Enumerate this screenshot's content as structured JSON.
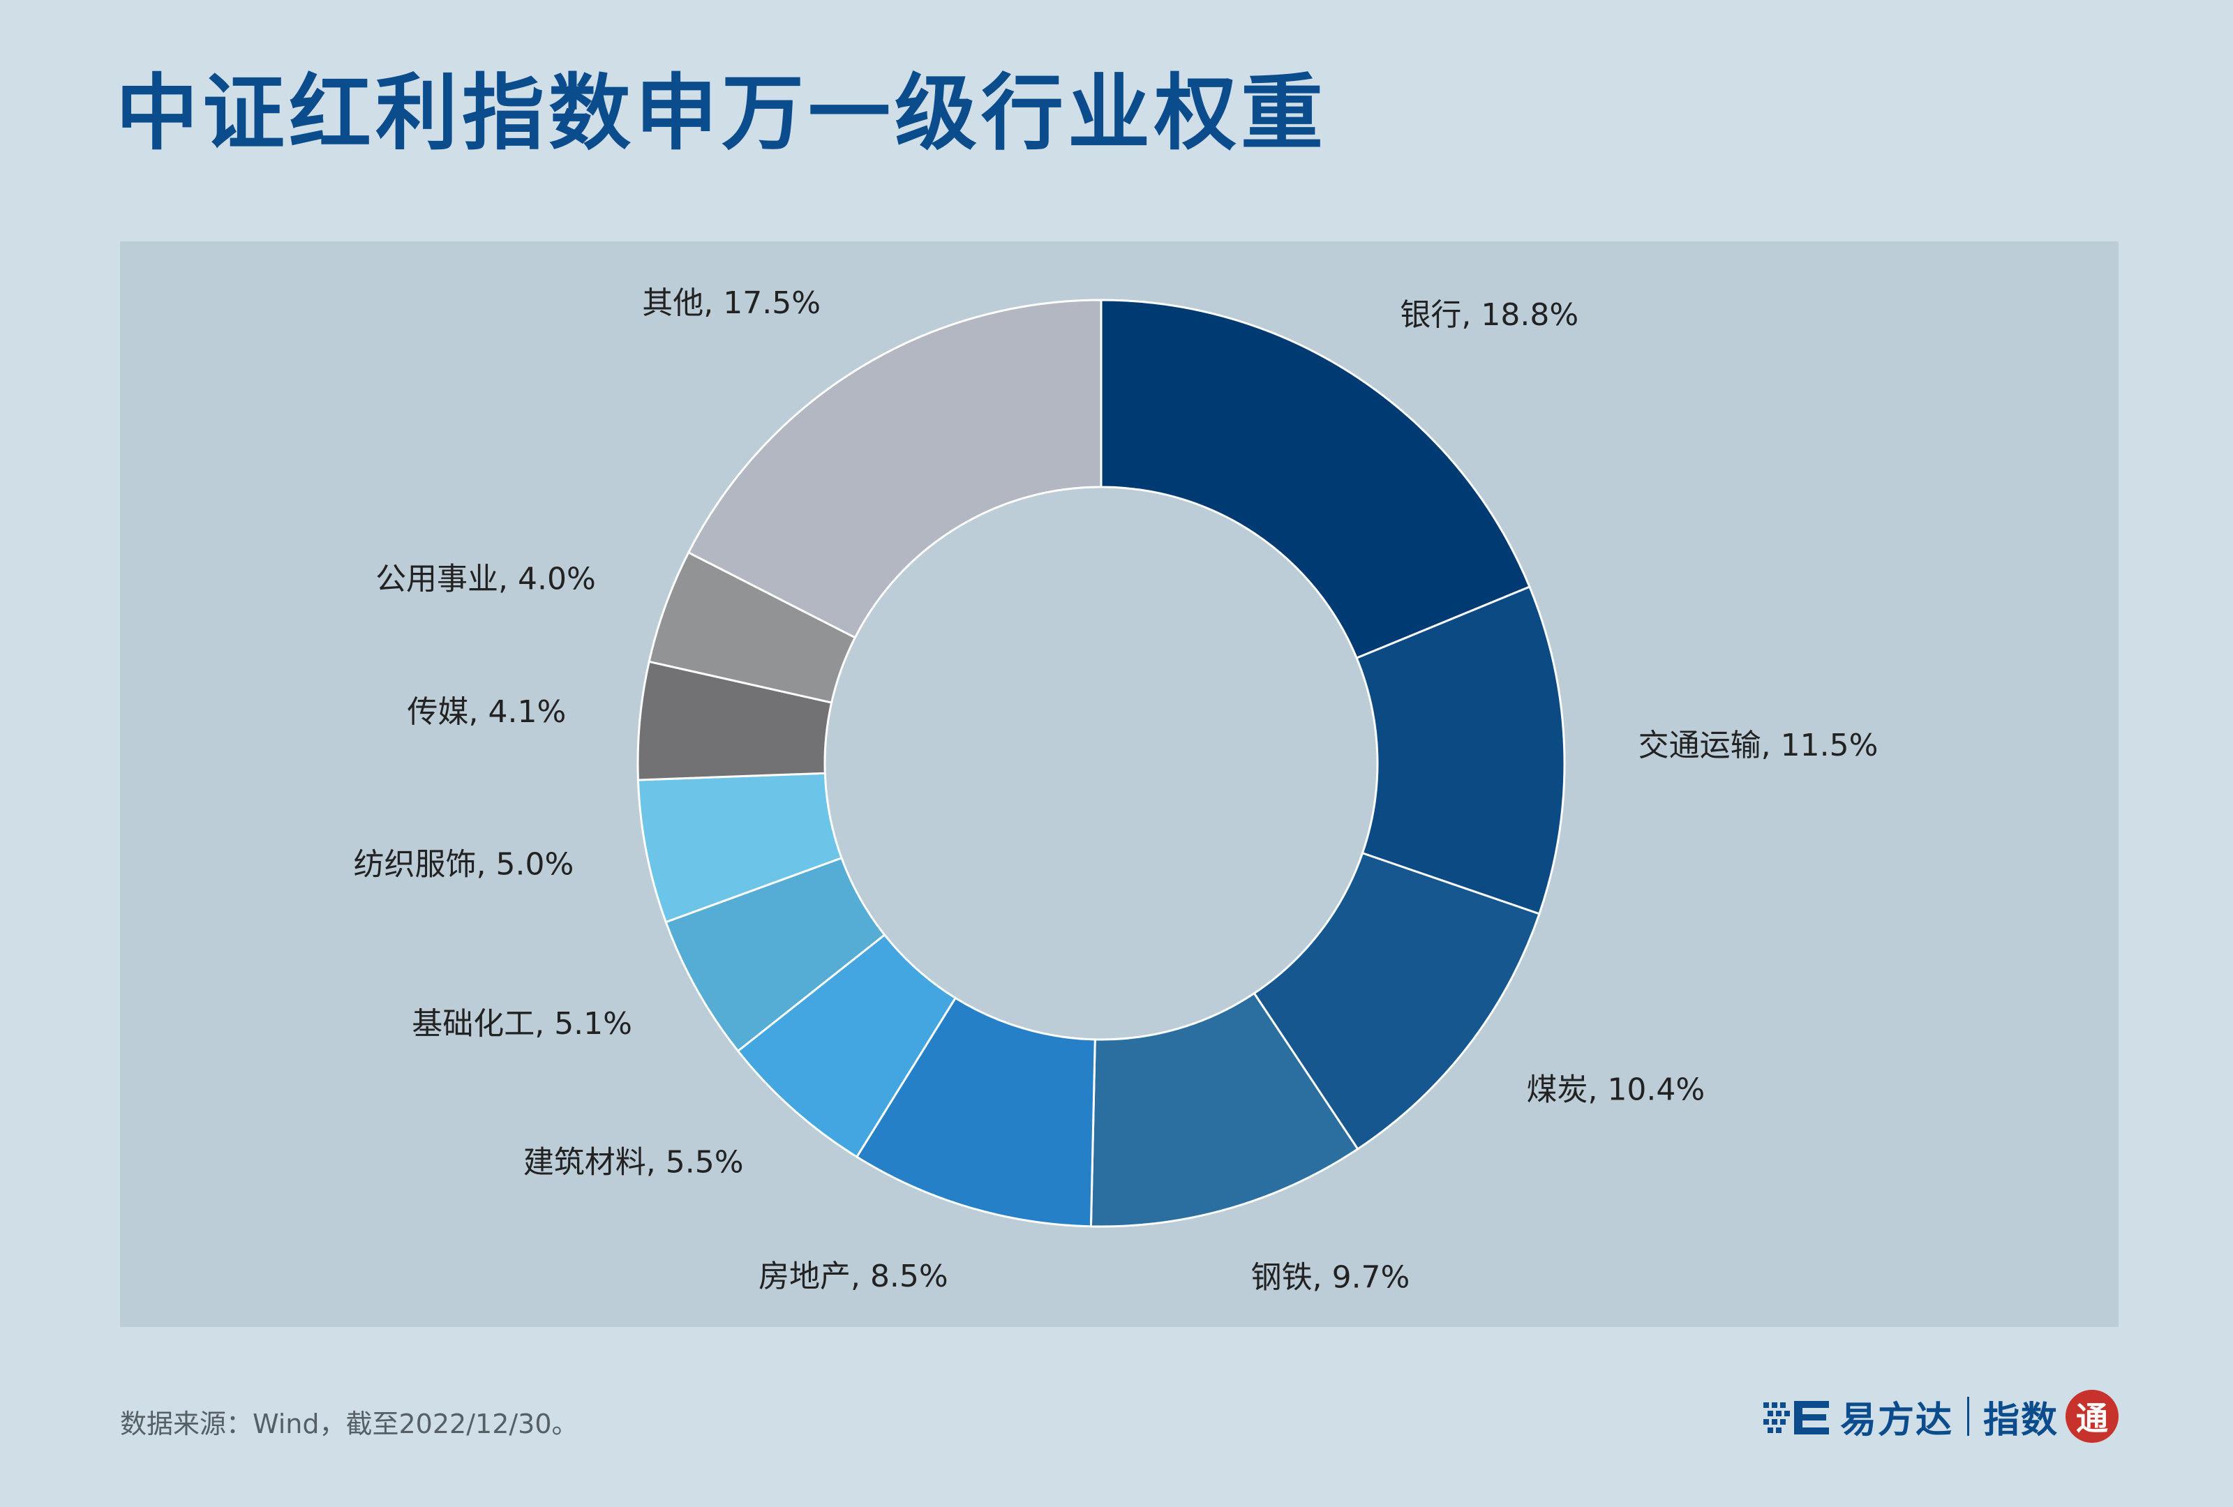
{
  "title": "中证红利指数申万一级行业权重",
  "source_note": "数据来源：Wind，截至2022/12/30。",
  "brand": {
    "name": "易方达",
    "sub": "指数",
    "seal": "通"
  },
  "colors": {
    "title": "#0a4c8c",
    "background": "#d0dee7",
    "panel": "#bccdd7"
  },
  "chart_data": {
    "type": "pie",
    "variant": "donut",
    "title": "",
    "slices": [
      {
        "label": "银行, 18.8%",
        "name": "银行",
        "value": 18.8,
        "color": "#003a73"
      },
      {
        "label": "交通运输, 11.5%",
        "name": "交通运输",
        "value": 11.5,
        "color": "#0c4a84"
      },
      {
        "label": "煤炭, 10.4%",
        "name": "煤炭",
        "value": 10.4,
        "color": "#15578e"
      },
      {
        "label": "钢铁, 9.7%",
        "name": "钢铁",
        "value": 9.7,
        "color": "#2a6f9f"
      },
      {
        "label": "房地产, 8.5%",
        "name": "房地产",
        "value": 8.5,
        "color": "#2680c8"
      },
      {
        "label": "建筑材料, 5.5%",
        "name": "建筑材料",
        "value": 5.5,
        "color": "#44a6e0"
      },
      {
        "label": "基础化工, 5.1%",
        "name": "基础化工",
        "value": 5.1,
        "color": "#55acd5"
      },
      {
        "label": "纺织服饰, 5.0%",
        "name": "纺织服饰",
        "value": 5.0,
        "color": "#6cc5e8"
      },
      {
        "label": "传媒, 4.1%",
        "name": "传媒",
        "value": 4.1,
        "color": "#727173"
      },
      {
        "label": "公用事业, 4.0%",
        "name": "公用事业",
        "value": 4.0,
        "color": "#929395"
      },
      {
        "label": "其他, 17.5%",
        "name": "其他",
        "value": 17.5,
        "color": "#b2b7c1"
      }
    ],
    "legend": "none",
    "start": "top",
    "direction": "clockwise"
  }
}
